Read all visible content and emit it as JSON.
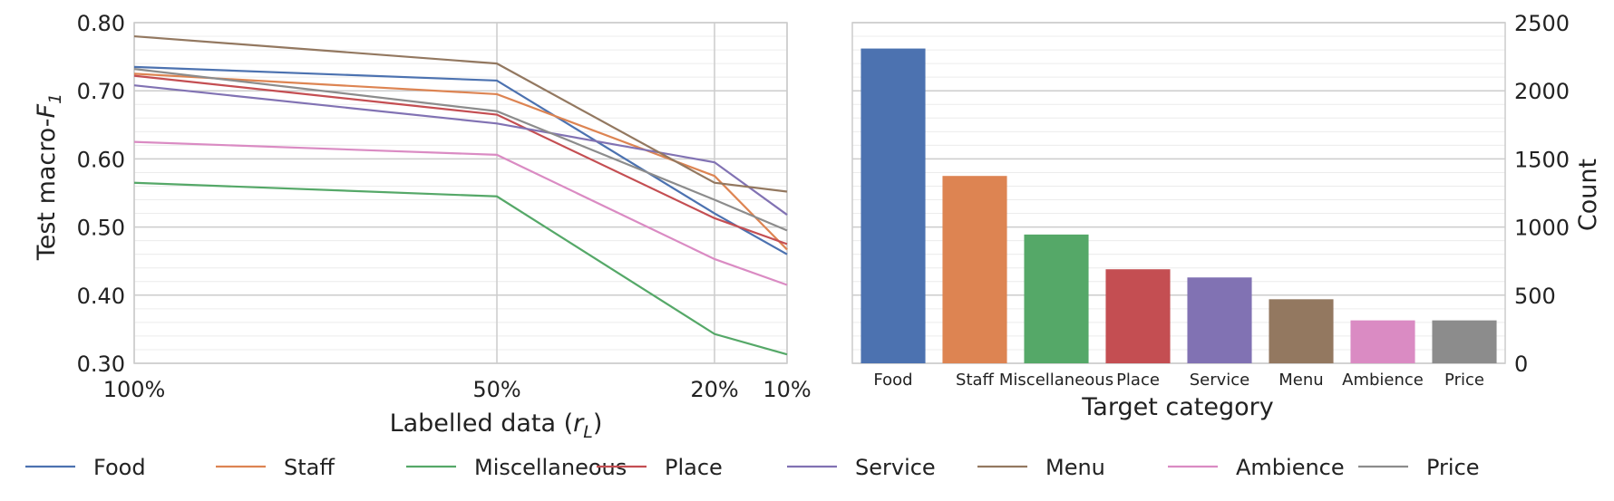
{
  "chart_data": [
    {
      "type": "line",
      "xlabel_main": "Labelled data (",
      "xlabel_var": "r",
      "xlabel_sub": "L",
      "xlabel_end": ")",
      "ylabel_main": "Test macro-",
      "ylabel_var": "F",
      "ylabel_sub": "1",
      "x_tick_labels": [
        "100%",
        "50%",
        "20%",
        "10%"
      ],
      "x": [
        1.0,
        0.5,
        0.2,
        0.1
      ],
      "xlim": [
        1.0,
        0.1
      ],
      "ylim": [
        0.3,
        0.8
      ],
      "y_ticks": [
        0.3,
        0.4,
        0.5,
        0.6,
        0.7,
        0.8
      ],
      "y_tick_labels": [
        "0.30",
        "0.40",
        "0.50",
        "0.60",
        "0.70",
        "0.80"
      ],
      "grid": true,
      "series": [
        {
          "name": "Food",
          "color": "#4C72B0",
          "values": [
            0.735,
            0.715,
            0.52,
            0.46
          ]
        },
        {
          "name": "Staff",
          "color": "#DD8452",
          "values": [
            0.725,
            0.695,
            0.575,
            0.467
          ]
        },
        {
          "name": "Miscellaneous",
          "color": "#55A868",
          "values": [
            0.565,
            0.545,
            0.343,
            0.313
          ]
        },
        {
          "name": "Place",
          "color": "#C44E52",
          "values": [
            0.722,
            0.665,
            0.513,
            0.475
          ]
        },
        {
          "name": "Service",
          "color": "#8172B3",
          "values": [
            0.708,
            0.652,
            0.595,
            0.518
          ]
        },
        {
          "name": "Menu",
          "color": "#937860",
          "values": [
            0.78,
            0.74,
            0.565,
            0.552
          ]
        },
        {
          "name": "Ambience",
          "color": "#DA8BC3",
          "values": [
            0.625,
            0.606,
            0.453,
            0.415
          ]
        },
        {
          "name": "Price",
          "color": "#8C8C8C",
          "values": [
            0.732,
            0.67,
            0.54,
            0.495
          ]
        }
      ]
    },
    {
      "type": "bar",
      "xlabel": "Target category",
      "ylabel": "Count",
      "categories": [
        "Food",
        "Staff",
        "Miscellaneous",
        "Place",
        "Service",
        "Menu",
        "Ambience",
        "Price"
      ],
      "values": [
        2310,
        1375,
        945,
        690,
        630,
        470,
        315,
        315
      ],
      "colors": [
        "#4C72B0",
        "#DD8452",
        "#55A868",
        "#C44E52",
        "#8172B3",
        "#937860",
        "#DA8BC3",
        "#8C8C8C"
      ],
      "ylim": [
        0,
        2500
      ],
      "y_ticks": [
        0,
        500,
        1000,
        1500,
        2000,
        2500
      ],
      "y_tick_labels": [
        "0",
        "500",
        "1000",
        "1500",
        "2000",
        "2500"
      ],
      "y_axis_side": "right",
      "grid": true
    }
  ],
  "legend": {
    "placement": "bottom",
    "entries": [
      {
        "label": "Food",
        "color": "#4C72B0"
      },
      {
        "label": "Staff",
        "color": "#DD8452"
      },
      {
        "label": "Miscellaneous",
        "color": "#55A868"
      },
      {
        "label": "Place",
        "color": "#C44E52"
      },
      {
        "label": "Service",
        "color": "#8172B3"
      },
      {
        "label": "Menu",
        "color": "#937860"
      },
      {
        "label": "Ambience",
        "color": "#DA8BC3"
      },
      {
        "label": "Price",
        "color": "#8C8C8C"
      }
    ]
  }
}
